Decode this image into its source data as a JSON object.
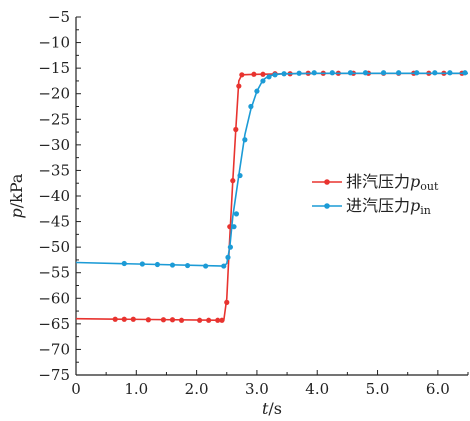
{
  "chart_data": {
    "type": "line",
    "title": "",
    "xlabel": {
      "var": "t",
      "unit": "/s"
    },
    "ylabel": {
      "var": "p",
      "unit": "/kPa"
    },
    "xlim": [
      0,
      6.5
    ],
    "ylim": [
      -75,
      -5
    ],
    "xticks": [
      0,
      1.0,
      2.0,
      3.0,
      4.0,
      5.0,
      6.0
    ],
    "xtick_labels": [
      "0",
      "1.0",
      "2.0",
      "3.0",
      "4.0",
      "5.0",
      "6.0"
    ],
    "yticks": [
      -5,
      -10,
      -15,
      -20,
      -25,
      -30,
      -35,
      -40,
      -45,
      -50,
      -55,
      -60,
      -65,
      -70,
      -75
    ],
    "ytick_labels": [
      "−5",
      "−10",
      "−15",
      "−20",
      "−25",
      "−30",
      "−35",
      "−40",
      "−45",
      "−50",
      "−55",
      "−60",
      "−65",
      "−70",
      "−75"
    ],
    "grid": false,
    "legend_position": "right-middle",
    "series": [
      {
        "name": "排汽压力",
        "name_var": "p",
        "name_sub": "out",
        "color": "#e8332f",
        "line": [
          [
            0,
            -64.0
          ],
          [
            2.45,
            -64.3
          ],
          [
            2.5,
            -60
          ],
          [
            2.55,
            -48
          ],
          [
            2.6,
            -37
          ],
          [
            2.65,
            -27
          ],
          [
            2.7,
            -17.5
          ],
          [
            2.75,
            -16.3
          ],
          [
            3.0,
            -16.2
          ],
          [
            4.0,
            -16.0
          ],
          [
            5.0,
            -16.0
          ],
          [
            6.0,
            -16.0
          ],
          [
            6.5,
            -16.0
          ]
        ],
        "markers": [
          [
            0.65,
            -64.1
          ],
          [
            0.8,
            -64.1
          ],
          [
            0.95,
            -64.1
          ],
          [
            1.2,
            -64.2
          ],
          [
            1.45,
            -64.2
          ],
          [
            1.6,
            -64.2
          ],
          [
            1.75,
            -64.3
          ],
          [
            2.05,
            -64.3
          ],
          [
            2.2,
            -64.3
          ],
          [
            2.35,
            -64.3
          ],
          [
            2.42,
            -64.3
          ],
          [
            2.5,
            -60.8
          ],
          [
            2.55,
            -46.0
          ],
          [
            2.6,
            -37.0
          ],
          [
            2.65,
            -27.0
          ],
          [
            2.7,
            -18.5
          ],
          [
            2.75,
            -16.3
          ],
          [
            2.95,
            -16.2
          ],
          [
            3.1,
            -16.2
          ],
          [
            3.3,
            -16.1
          ],
          [
            3.55,
            -16.1
          ],
          [
            3.85,
            -16.0
          ],
          [
            4.1,
            -16.0
          ],
          [
            4.35,
            -16.0
          ],
          [
            4.6,
            -16.0
          ],
          [
            4.85,
            -16.0
          ],
          [
            5.1,
            -16.0
          ],
          [
            5.35,
            -16.0
          ],
          [
            5.6,
            -16.0
          ],
          [
            5.85,
            -16.0
          ],
          [
            6.1,
            -16.0
          ],
          [
            6.4,
            -16.0
          ]
        ]
      },
      {
        "name": "进汽压力",
        "name_var": "p",
        "name_sub": "in",
        "color": "#1c9bd6",
        "line": [
          [
            0,
            -53.0
          ],
          [
            2.45,
            -53.7
          ],
          [
            2.5,
            -53.2
          ],
          [
            2.55,
            -50
          ],
          [
            2.6,
            -44
          ],
          [
            2.7,
            -36
          ],
          [
            2.8,
            -28
          ],
          [
            2.9,
            -23
          ],
          [
            3.0,
            -19.5
          ],
          [
            3.1,
            -17.3
          ],
          [
            3.2,
            -16.5
          ],
          [
            3.4,
            -16.1
          ],
          [
            4.0,
            -16.0
          ],
          [
            5.0,
            -16.0
          ],
          [
            6.5,
            -16.0
          ]
        ],
        "markers": [
          [
            0.8,
            -53.2
          ],
          [
            1.1,
            -53.3
          ],
          [
            1.35,
            -53.4
          ],
          [
            1.6,
            -53.5
          ],
          [
            1.85,
            -53.6
          ],
          [
            2.15,
            -53.7
          ],
          [
            2.45,
            -53.7
          ],
          [
            2.52,
            -52.0
          ],
          [
            2.56,
            -50.0
          ],
          [
            2.62,
            -46.0
          ],
          [
            2.66,
            -43.5
          ],
          [
            2.72,
            -36.0
          ],
          [
            2.8,
            -29.0
          ],
          [
            2.9,
            -22.5
          ],
          [
            3.0,
            -19.5
          ],
          [
            3.1,
            -17.5
          ],
          [
            3.2,
            -16.7
          ],
          [
            3.3,
            -16.3
          ],
          [
            3.45,
            -16.1
          ],
          [
            3.7,
            -16.0
          ],
          [
            3.95,
            -15.9
          ],
          [
            4.25,
            -15.9
          ],
          [
            4.55,
            -15.9
          ],
          [
            4.8,
            -15.9
          ],
          [
            5.1,
            -15.9
          ],
          [
            5.35,
            -15.9
          ],
          [
            5.65,
            -15.9
          ],
          [
            5.95,
            -15.9
          ],
          [
            6.2,
            -15.9
          ],
          [
            6.45,
            -15.9
          ]
        ]
      }
    ]
  }
}
